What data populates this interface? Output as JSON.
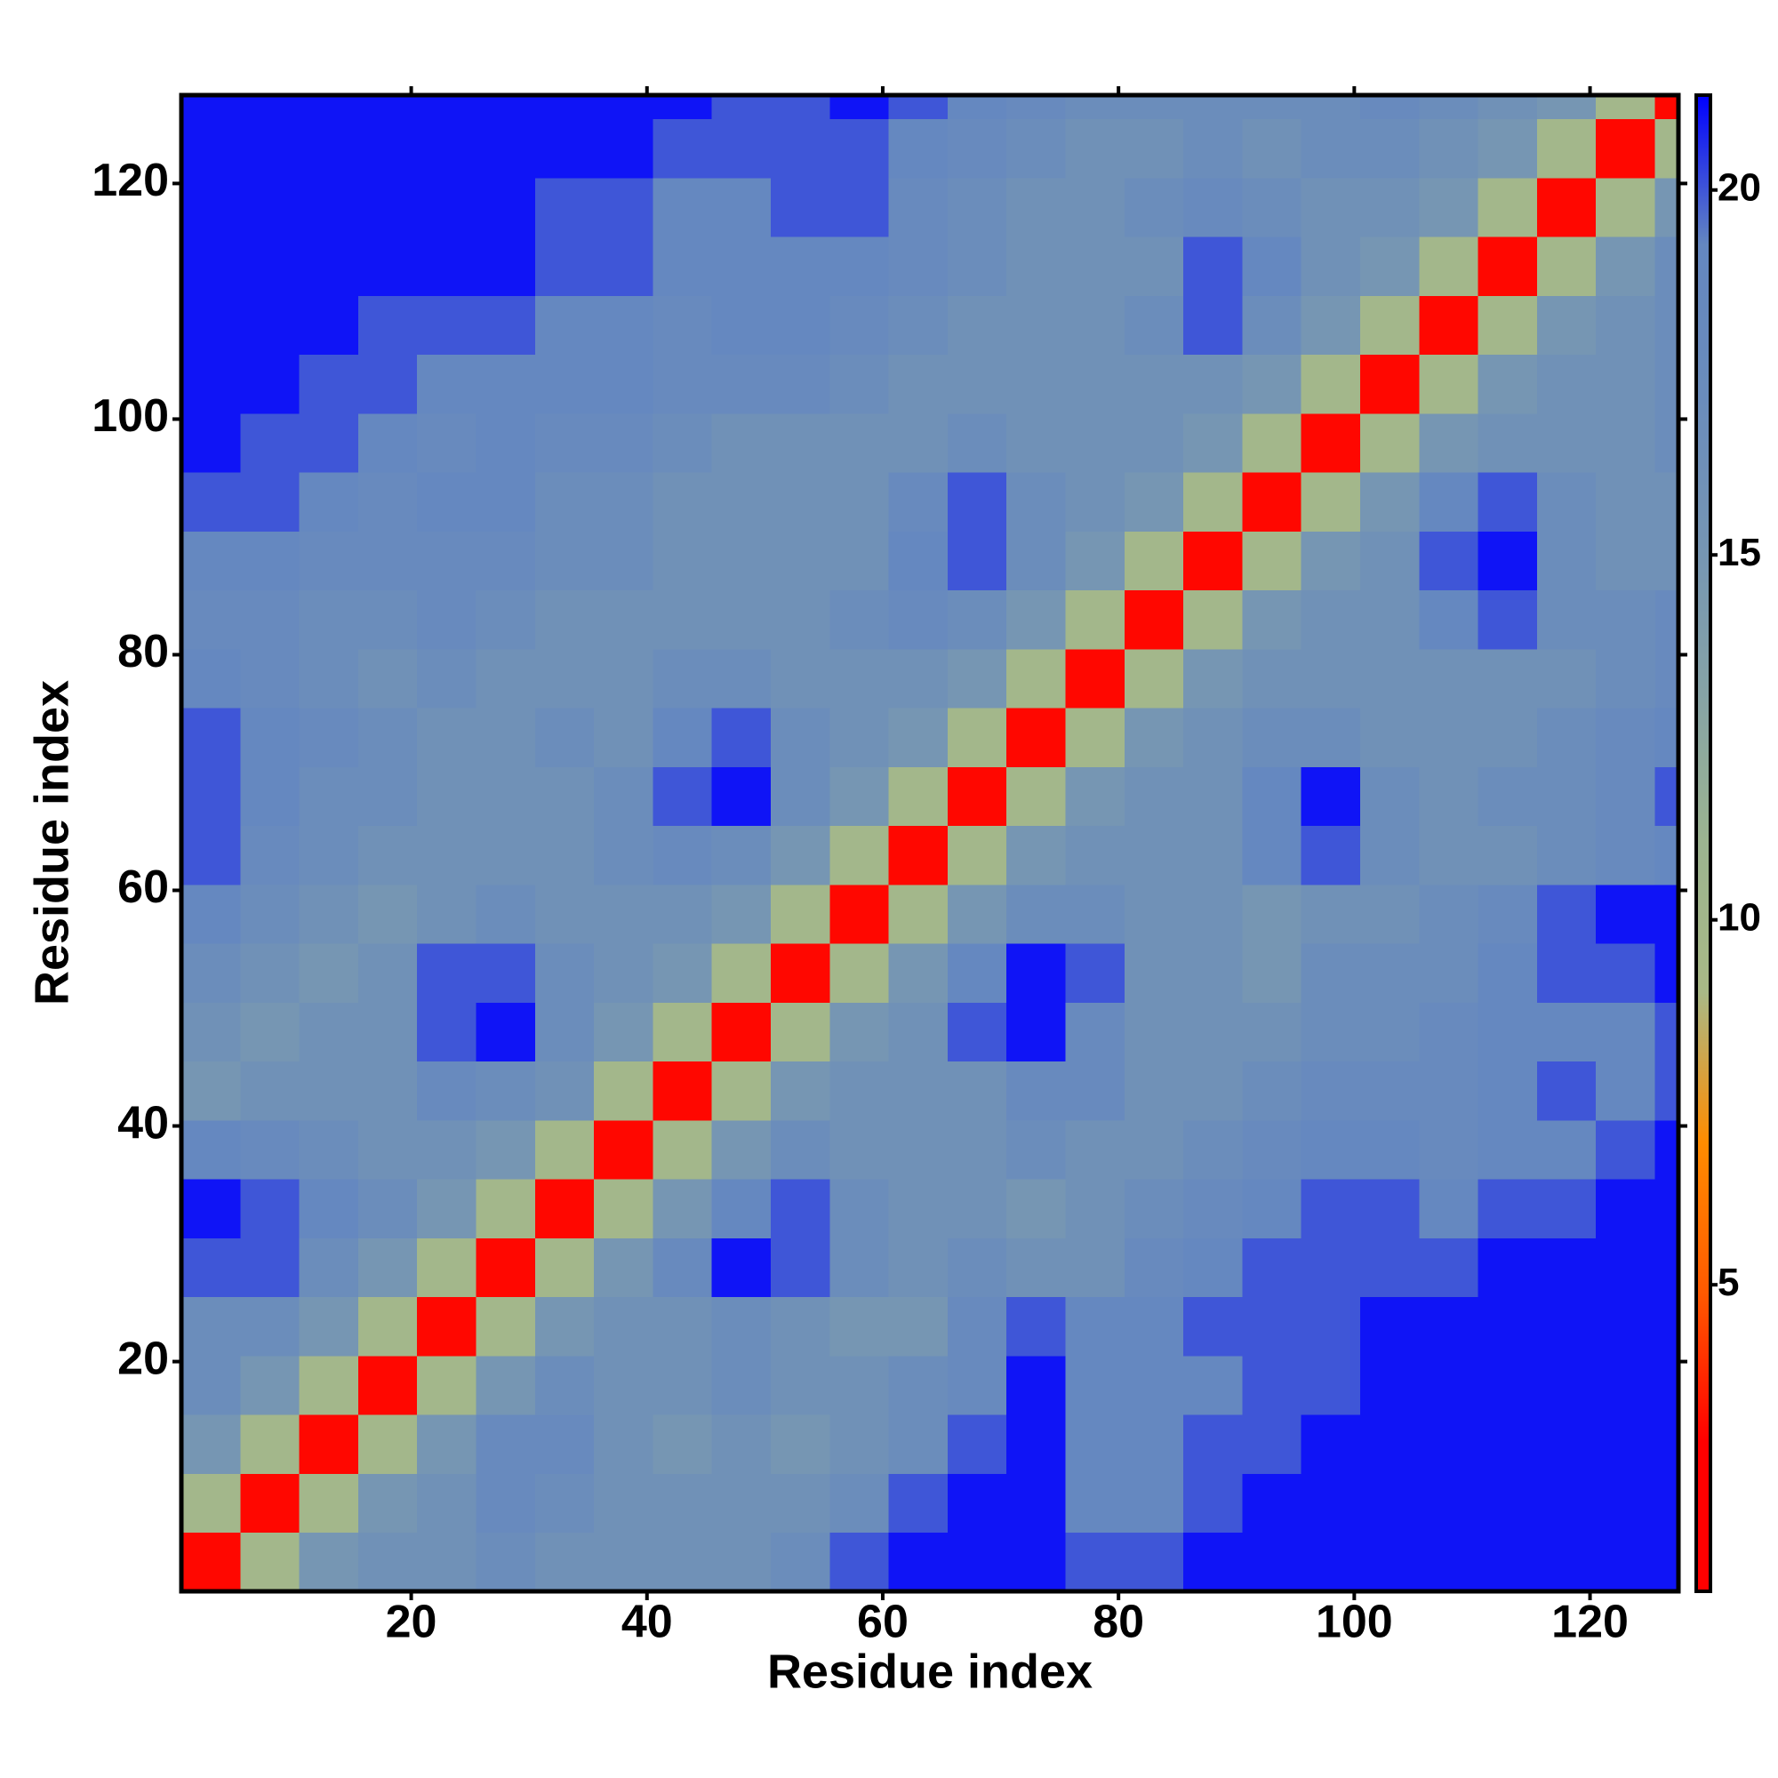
{
  "chart_data": {
    "type": "heatmap",
    "xlabel": "Residue index",
    "ylabel": "Residue index",
    "xbins": [
      0.5,
      5.5,
      10.5,
      15.5,
      20.5,
      25.5,
      30.5,
      35.5,
      40.5,
      45.5,
      50.5,
      55.5,
      60.5,
      65.5,
      70.5,
      75.5,
      80.5,
      85.5,
      90.5,
      95.5,
      100.5,
      105.5,
      110.5,
      115.5,
      120.5,
      125.5,
      127.5
    ],
    "ybins": [
      0.5,
      5.5,
      10.5,
      15.5,
      20.5,
      25.5,
      30.5,
      35.5,
      40.5,
      45.5,
      50.5,
      55.5,
      60.5,
      65.5,
      70.5,
      75.5,
      80.5,
      85.5,
      90.5,
      95.5,
      100.5,
      105.5,
      110.5,
      115.5,
      120.5,
      125.5,
      127.5
    ],
    "xlim": [
      0.5,
      127.5
    ],
    "ylim": [
      0.5,
      127.5
    ],
    "xticks": [
      20,
      40,
      60,
      80,
      100,
      120
    ],
    "yticks": [
      20,
      40,
      60,
      80,
      100,
      120
    ],
    "zlim": [
      0.8,
      21.3
    ],
    "zticks": [
      5,
      10,
      15,
      20
    ],
    "colorscale": [
      "#ff0000",
      "#ff0000",
      "#ff5a00",
      "#ff8c00",
      "#a9b986",
      "#9cb490",
      "#86a3a6",
      "#7595b4",
      "#6a8cbc",
      "#6487c0",
      "#0000ff"
    ],
    "z": [
      [
        3,
        10,
        15,
        16,
        16,
        17,
        16,
        16,
        16,
        16,
        17,
        20,
        21,
        21,
        21,
        20,
        20,
        21,
        21,
        21,
        21,
        21,
        21,
        21,
        21,
        21
      ],
      [
        10,
        3,
        10,
        15,
        16,
        18,
        17,
        16,
        16,
        16,
        16,
        17,
        20,
        21,
        21,
        19,
        19,
        20,
        21,
        21,
        21,
        21,
        21,
        21,
        21,
        21
      ],
      [
        15,
        10,
        3,
        10,
        15,
        18,
        18,
        16,
        15,
        16,
        15,
        16,
        17,
        20,
        21,
        19,
        19,
        20,
        20,
        21,
        21,
        21,
        21,
        21,
        21,
        21
      ],
      [
        17,
        15,
        10,
        3,
        10,
        15,
        17,
        16,
        16,
        17,
        16,
        16,
        17,
        18,
        21,
        19,
        19,
        19,
        20,
        20,
        21,
        21,
        21,
        21,
        21,
        21
      ],
      [
        17,
        17,
        15,
        10,
        3,
        10,
        15,
        16,
        16,
        17,
        16,
        15,
        15,
        18,
        20,
        19,
        19,
        20,
        20,
        20,
        21,
        21,
        21,
        21,
        21,
        21
      ],
      [
        20,
        20,
        17,
        15,
        10,
        3,
        10,
        15,
        18,
        21,
        20,
        17,
        16,
        17,
        16,
        16,
        18,
        19,
        20,
        20,
        20,
        20,
        21,
        21,
        21,
        21
      ],
      [
        21,
        20,
        19,
        17,
        15,
        10,
        3,
        10,
        15,
        19,
        20,
        17,
        16,
        16,
        15,
        16,
        17,
        18,
        19,
        20,
        20,
        19,
        20,
        20,
        21,
        21
      ],
      [
        19,
        18,
        17,
        16,
        16,
        15,
        10,
        3,
        10,
        15,
        17,
        16,
        16,
        16,
        17,
        16,
        16,
        17,
        18,
        19,
        19,
        18,
        19,
        19,
        20,
        21
      ],
      [
        15,
        16,
        16,
        16,
        18,
        17,
        16,
        10,
        3,
        10,
        15,
        16,
        16,
        16,
        18,
        18,
        16,
        16,
        17,
        18,
        18,
        18,
        19,
        20,
        19,
        20
      ],
      [
        16,
        15,
        16,
        16,
        20,
        21,
        17,
        15,
        10,
        3,
        10,
        15,
        16,
        20,
        21,
        18,
        16,
        16,
        16,
        17,
        17,
        18,
        19,
        19,
        19,
        20
      ],
      [
        17,
        16,
        15,
        16,
        20,
        20,
        17,
        16,
        15,
        10,
        3,
        10,
        15,
        19,
        21,
        20,
        16,
        16,
        15,
        17,
        17,
        17,
        19,
        20,
        20,
        21
      ],
      [
        19,
        17,
        16,
        15,
        16,
        17,
        16,
        16,
        16,
        15,
        10,
        3,
        10,
        15,
        17,
        17,
        16,
        16,
        15,
        16,
        16,
        17,
        18,
        20,
        21,
        21
      ],
      [
        20,
        18,
        17,
        16,
        16,
        16,
        16,
        17,
        18,
        17,
        15,
        10,
        3,
        10,
        15,
        16,
        16,
        16,
        19,
        20,
        17,
        16,
        16,
        17,
        18,
        19
      ],
      [
        20,
        19,
        17,
        17,
        16,
        16,
        16,
        17,
        20,
        21,
        17,
        15,
        10,
        3,
        10,
        15,
        16,
        16,
        19,
        21,
        17,
        16,
        17,
        17,
        18,
        20
      ],
      [
        20,
        19,
        18,
        17,
        16,
        16,
        17,
        16,
        19,
        20,
        17,
        16,
        15,
        10,
        3,
        10,
        15,
        16,
        17,
        17,
        16,
        16,
        16,
        17,
        18,
        19
      ],
      [
        19,
        18,
        17,
        16,
        17,
        16,
        16,
        16,
        17,
        17,
        16,
        16,
        16,
        15,
        10,
        3,
        10,
        15,
        16,
        16,
        16,
        16,
        16,
        16,
        17,
        18
      ],
      [
        18,
        18,
        17,
        17,
        18,
        17,
        16,
        16,
        16,
        16,
        16,
        17,
        18,
        17,
        15,
        10,
        3,
        10,
        15,
        16,
        16,
        19,
        20,
        17,
        17,
        18
      ],
      [
        19,
        19,
        18,
        18,
        18,
        18,
        17,
        17,
        16,
        16,
        16,
        16,
        19,
        20,
        17,
        15,
        10,
        3,
        10,
        15,
        16,
        20,
        21,
        17,
        16,
        16
      ],
      [
        20,
        20,
        19,
        18,
        19,
        19,
        17,
        17,
        16,
        16,
        16,
        16,
        18,
        20,
        17,
        16,
        15,
        10,
        3,
        10,
        15,
        19,
        20,
        17,
        16,
        16
      ],
      [
        21,
        20,
        20,
        19,
        18,
        19,
        18,
        18,
        17,
        16,
        16,
        16,
        16,
        17,
        16,
        16,
        16,
        15,
        10,
        3,
        10,
        15,
        16,
        16,
        16,
        17
      ],
      [
        21,
        21,
        20,
        20,
        19,
        19,
        19,
        19,
        18,
        18,
        18,
        17,
        16,
        16,
        16,
        16,
        16,
        16,
        15,
        10,
        3,
        10,
        15,
        16,
        16,
        17
      ],
      [
        21,
        21,
        21,
        20,
        20,
        20,
        19,
        19,
        18,
        19,
        19,
        18,
        17,
        16,
        16,
        16,
        17,
        20,
        17,
        15,
        10,
        3,
        10,
        15,
        16,
        17
      ],
      [
        21,
        21,
        21,
        21,
        21,
        21,
        20,
        20,
        19,
        19,
        19,
        19,
        18,
        17,
        16,
        16,
        16,
        20,
        19,
        16,
        15,
        10,
        3,
        10,
        15,
        17
      ],
      [
        21,
        21,
        21,
        21,
        21,
        21,
        20,
        20,
        19,
        19,
        20,
        20,
        18,
        17,
        16,
        16,
        17,
        18,
        17,
        16,
        16,
        15,
        10,
        3,
        10,
        15
      ],
      [
        21,
        21,
        21,
        21,
        21,
        21,
        21,
        21,
        20,
        20,
        20,
        20,
        19,
        18,
        17,
        16,
        16,
        17,
        16,
        17,
        17,
        16,
        15,
        10,
        3,
        10
      ],
      [
        21,
        21,
        21,
        21,
        21,
        21,
        21,
        21,
        21,
        20,
        20,
        21,
        20,
        19,
        18,
        17,
        17,
        17,
        17,
        17,
        18,
        17,
        16,
        15,
        10,
        3
      ]
    ]
  }
}
